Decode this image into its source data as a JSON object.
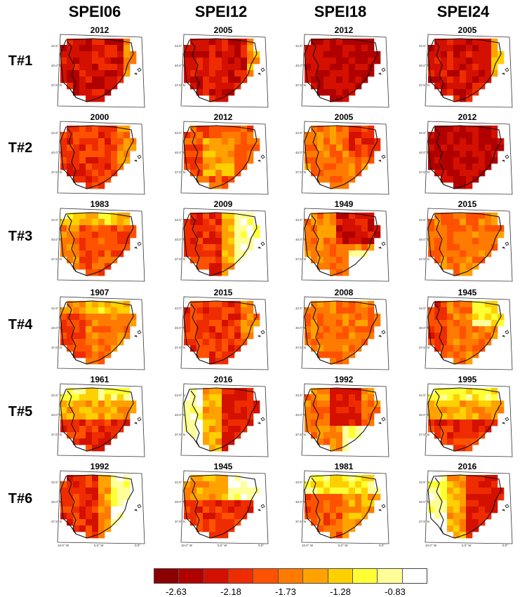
{
  "columns": [
    "SPEI06",
    "SPEI12",
    "SPEI18",
    "SPEI24"
  ],
  "rows": [
    "T#1",
    "T#2",
    "T#3",
    "T#4",
    "T#5",
    "T#6"
  ],
  "years": [
    [
      "2012",
      "2005",
      "2012",
      "2005"
    ],
    [
      "2000",
      "2012",
      "2005",
      "2012"
    ],
    [
      "1983",
      "2009",
      "1949",
      "2015"
    ],
    [
      "1907",
      "2015",
      "2008",
      "1945"
    ],
    [
      "1961",
      "2016",
      "1992",
      "1995"
    ],
    [
      "1992",
      "1945",
      "1981",
      "2016"
    ]
  ],
  "lat_labels": [
    "42.5° N",
    "40.0° N",
    "37.5° N"
  ],
  "lon_labels": [
    "10.0° W",
    "5.0° W",
    "0.0°"
  ],
  "legend": {
    "colors": [
      "#8b0000",
      "#b00000",
      "#d41000",
      "#ee2c00",
      "#ff5200",
      "#ff7a00",
      "#ffa200",
      "#ffd000",
      "#ffff33",
      "#ffff99",
      "#ffffff"
    ],
    "tick_labels": [
      "-2.63",
      "-2.18",
      "-1.73",
      "-1.28",
      "-0.83"
    ]
  },
  "panel_patterns": [
    [
      "deep_all",
      "deep_east_light",
      "deepest",
      "deep_east_light"
    ],
    [
      "mid_red",
      "center_light",
      "orange_east_red",
      "deepest"
    ],
    [
      "light_mid",
      "west_red_east_white",
      "northeast_red",
      "orange_mixed"
    ],
    [
      "mid_orange",
      "mid_red",
      "orange_mixed",
      "light_northeast"
    ],
    [
      "south_red",
      "east_red_west_white",
      "center_red_south_white",
      "south_red"
    ],
    [
      "west_red_east_white",
      "south_red_north_light",
      "west_red_north_white",
      "east_red_west_white"
    ]
  ]
}
